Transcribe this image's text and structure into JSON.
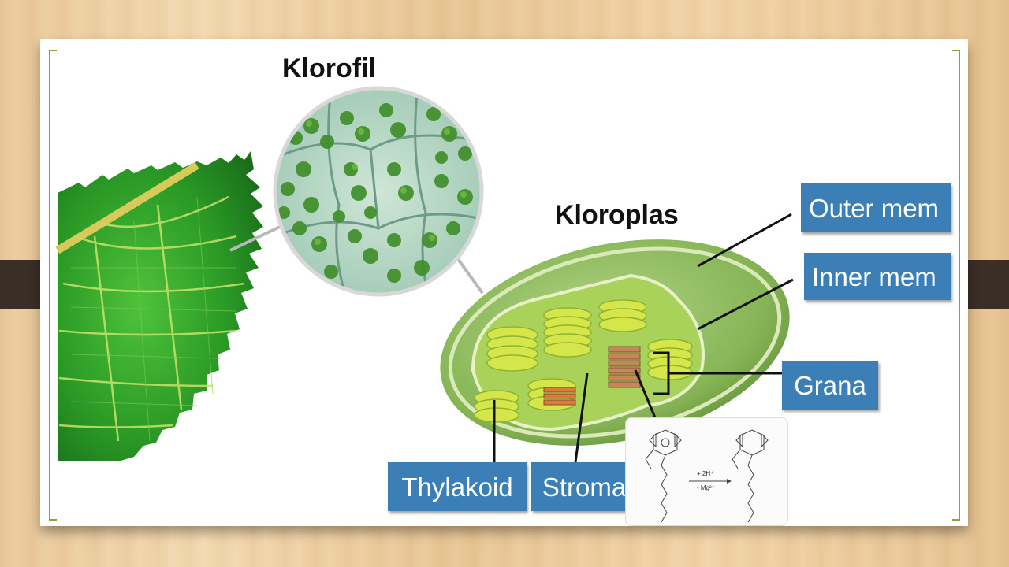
{
  "titles": {
    "klorofil": "Klorofil",
    "kloroplas": "Kloroplas"
  },
  "labels": {
    "outer_membrane": "Outer  mem",
    "inner_membrane": "Inner  mem",
    "grana": "Grana",
    "thylakoid": "Thylakoid",
    "stroma": "Stroma"
  },
  "reaction": {
    "top": "+ 2H⁺",
    "bottom": "- Mg²⁺"
  },
  "colors": {
    "label_bg": "#3b7fb6",
    "leaf_green": "#2f9a2a",
    "chloroplast_green": "#8fbd5a",
    "bracket": "#8aa13d"
  }
}
